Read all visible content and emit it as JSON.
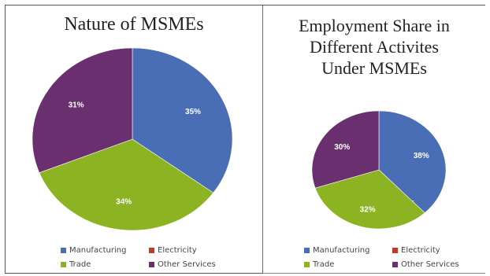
{
  "chart_data": [
    {
      "type": "pie",
      "title": "Nature of MSMEs",
      "slices": [
        {
          "label": "Manufacturing",
          "value": 35,
          "value_label": "35%",
          "color": "#4a6eb5"
        },
        {
          "label": "Electricity",
          "value": 0,
          "value_label": "0%",
          "color": "#c0392b"
        },
        {
          "label": "Trade",
          "value": 34,
          "value_label": "34%",
          "color": "#8cb321"
        },
        {
          "label": "Other Services",
          "value": 31,
          "value_label": "31%",
          "color": "#6a2f6e"
        }
      ],
      "legend_position": "bottom"
    },
    {
      "type": "pie",
      "title": [
        "Employment Share in",
        "Different Activites",
        "Under MSMEs"
      ],
      "slices": [
        {
          "label": "Manufacturing",
          "value": 38,
          "value_label": "38%",
          "color": "#4a6eb5"
        },
        {
          "label": "Electricity",
          "value": 0,
          "value_label": "0%",
          "color": "#c0392b"
        },
        {
          "label": "Trade",
          "value": 32,
          "value_label": "32%",
          "color": "#8cb321"
        },
        {
          "label": "Other Services",
          "value": 30,
          "value_label": "30%",
          "color": "#6a2f6e"
        }
      ],
      "legend_position": "bottom"
    }
  ]
}
